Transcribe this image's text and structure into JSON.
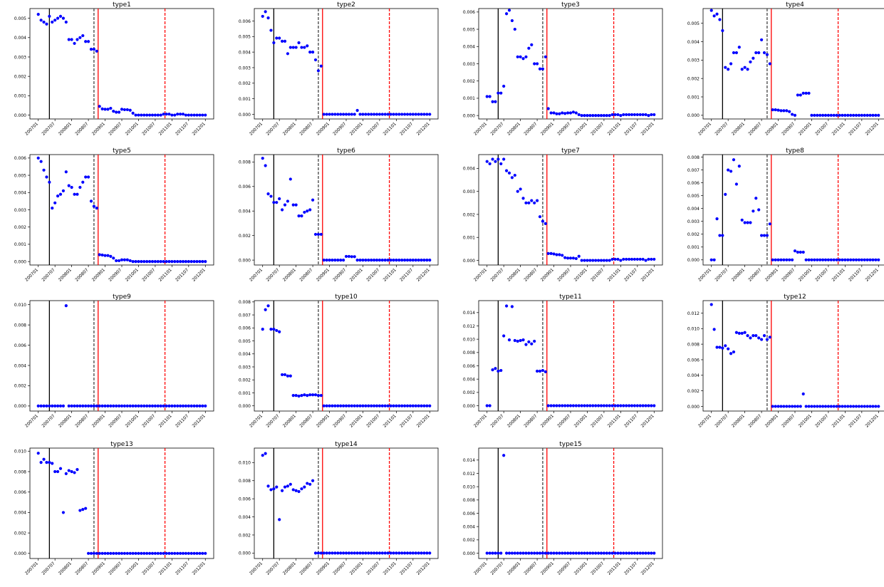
{
  "colors": {
    "points": "#0000ff",
    "black_line": "#000000",
    "dash_line": "#444444",
    "red_line": "#ff0000"
  },
  "x_tick_labels": [
    "200701",
    "200707",
    "200801",
    "200807",
    "200901",
    "200907",
    "201001",
    "201007",
    "201101",
    "201107",
    "201201"
  ],
  "chart_data": [
    {
      "type": "scatter",
      "title": "type1",
      "ylim": [
        -0.0002,
        0.0055
      ],
      "yticks": [
        "0.000",
        "0.001",
        "0.002",
        "0.003",
        "0.004",
        "0.005"
      ],
      "ytick_values": [
        0,
        0.001,
        0.002,
        0.003,
        0.004,
        0.005
      ],
      "y": [
        0.0052,
        0.0049,
        0.0048,
        0.0047,
        0.0051,
        0.0048,
        0.0049,
        0.005,
        0.0051,
        0.005,
        0.0048,
        0.0039,
        0.0039,
        0.0037,
        0.0039,
        0.004,
        0.0041,
        0.0038,
        0.0038,
        0.0034,
        0.0034,
        0.0033,
        0.00045,
        0.00032,
        0.0003,
        0.0003,
        0.00035,
        0.0002,
        0.00015,
        0.00015,
        0.0003,
        0.00028,
        0.00028,
        0.00025,
        0.0001,
        0.0,
        0.0,
        0.0,
        0.0,
        0.0,
        0.0,
        0.0,
        0.0,
        0.0,
        0.0,
        5e-05,
        5e-05,
        5e-05,
        0.0,
        0.0,
        5e-05,
        5e-05,
        5e-05,
        0.0,
        0.0,
        0.0,
        0.0,
        0.0,
        0.0,
        0.0,
        0.0
      ]
    },
    {
      "type": "scatter",
      "title": "type2",
      "ylim": [
        -0.0003,
        0.0068
      ],
      "yticks": [
        "0.000",
        "0.001",
        "0.002",
        "0.003",
        "0.004",
        "0.005",
        "0.006"
      ],
      "ytick_values": [
        0,
        0.001,
        0.002,
        0.003,
        0.004,
        0.005,
        0.006
      ],
      "y": [
        0.0063,
        0.0066,
        0.0062,
        0.0054,
        0.0046,
        0.0049,
        0.0049,
        0.0047,
        0.0047,
        0.0039,
        0.0043,
        0.0043,
        0.0043,
        0.0046,
        0.0043,
        0.0043,
        0.0044,
        0.004,
        0.004,
        0.0035,
        0.0028,
        0.0031,
        0,
        0,
        0,
        0,
        0,
        0,
        0,
        0,
        0,
        0,
        0,
        0,
        0.00025,
        0,
        0,
        0,
        0,
        0,
        0,
        0,
        0,
        0,
        0,
        0,
        0,
        0,
        0,
        0,
        0,
        0,
        0,
        0,
        0,
        0,
        0,
        0,
        0,
        0,
        0
      ]
    },
    {
      "type": "scatter",
      "title": "type3",
      "ylim": [
        -0.0002,
        0.0062
      ],
      "yticks": [
        "0.000",
        "0.001",
        "0.002",
        "0.003",
        "0.004",
        "0.005",
        "0.006"
      ],
      "ytick_values": [
        0,
        0.001,
        0.002,
        0.003,
        0.004,
        0.005,
        0.006
      ],
      "y": [
        0.0011,
        0.0011,
        0.0008,
        0.0008,
        0.0013,
        0.0013,
        0.0017,
        0.0059,
        0.0061,
        0.0055,
        0.005,
        0.0034,
        0.0034,
        0.0033,
        0.0034,
        0.0039,
        0.0041,
        0.003,
        0.003,
        0.0027,
        0.0027,
        0.0034,
        0.0004,
        0.00015,
        0.00015,
        0.0001,
        0.0001,
        0.00015,
        0.00012,
        0.00015,
        0.00015,
        0.0002,
        0.00015,
        5e-05,
        0.0,
        0.0,
        0.0,
        0.0,
        0.0,
        0.0,
        0.0,
        0.0,
        0.0,
        0.0,
        0.0,
        5e-05,
        5e-05,
        5e-05,
        0.0,
        5e-05,
        5e-05,
        5e-05,
        5e-05,
        5e-05,
        5e-05,
        5e-05,
        5e-05,
        5e-05,
        0.0,
        5e-05,
        5e-05
      ]
    },
    {
      "type": "scatter",
      "title": "type4",
      "ylim": [
        -0.0002,
        0.0058
      ],
      "yticks": [
        "0.000",
        "0.001",
        "0.002",
        "0.003",
        "0.004",
        "0.005"
      ],
      "ytick_values": [
        0,
        0.001,
        0.002,
        0.003,
        0.004,
        0.005
      ],
      "y": [
        0.0057,
        0.0054,
        0.0055,
        0.0052,
        0.0046,
        0.0026,
        0.0025,
        0.0028,
        0.0034,
        0.0034,
        0.0037,
        0.0025,
        0.0026,
        0.0025,
        0.0029,
        0.0031,
        0.0034,
        0.0034,
        0.0041,
        0.0034,
        0.0033,
        0.0028,
        0.0003,
        0.0003,
        0.00028,
        0.00025,
        0.00025,
        0.00025,
        0.0002,
        5e-05,
        0.0,
        0.0011,
        0.0011,
        0.0012,
        0.0012,
        0.0012,
        0.0,
        0.0,
        0.0,
        0.0,
        0.0,
        0.0,
        0.0,
        0.0,
        0.0,
        0.0,
        0.0,
        0.0,
        0.0,
        0.0,
        0.0,
        0.0,
        0.0,
        0.0,
        0.0,
        0.0,
        0.0,
        0.0,
        0.0,
        0.0,
        0.0
      ]
    },
    {
      "type": "scatter",
      "title": "type5",
      "ylim": [
        -0.0002,
        0.0062
      ],
      "yticks": [
        "0.000",
        "0.001",
        "0.002",
        "0.003",
        "0.004",
        "0.005",
        "0.006"
      ],
      "ytick_values": [
        0,
        0.001,
        0.002,
        0.003,
        0.004,
        0.005,
        0.006
      ],
      "y": [
        0.006,
        0.0058,
        0.0053,
        0.0049,
        0.0046,
        0.0031,
        0.0034,
        0.0038,
        0.0039,
        0.0041,
        0.0052,
        0.0044,
        0.0043,
        0.0039,
        0.0039,
        0.0043,
        0.0046,
        0.0049,
        0.0049,
        0.0035,
        0.0032,
        0.0031,
        0.0004,
        0.00038,
        0.00035,
        0.00035,
        0.0003,
        0.0002,
        5e-05,
        5e-05,
        0.0001,
        0.0001,
        0.0001,
        5e-05,
        0.0,
        0.0,
        0.0,
        0.0,
        0.0,
        0.0,
        0.0,
        0.0,
        0.0,
        0.0,
        0.0,
        0.0,
        0.0,
        0.0,
        0.0,
        0.0,
        0.0,
        0.0,
        0.0,
        0.0,
        0.0,
        0.0,
        0.0,
        0.0,
        0.0,
        0.0,
        0.0
      ]
    },
    {
      "type": "scatter",
      "title": "type6",
      "ylim": [
        -0.0004,
        0.0086
      ],
      "yticks": [
        "0.000",
        "0.002",
        "0.004",
        "0.006",
        "0.008"
      ],
      "ytick_values": [
        0,
        0.002,
        0.004,
        0.006,
        0.008
      ],
      "y": [
        0.0083,
        0.0077,
        0.0054,
        0.0052,
        0.0047,
        0.0047,
        0.005,
        0.0041,
        0.0045,
        0.0048,
        0.0066,
        0.0045,
        0.0045,
        0.0036,
        0.0036,
        0.0039,
        0.004,
        0.0041,
        0.0049,
        0.0021,
        0.0021,
        0.0021,
        0,
        0,
        0,
        0,
        0,
        0,
        0,
        0,
        0.0003,
        0.0003,
        0.00028,
        0.00028,
        0,
        0,
        0,
        0,
        0,
        0,
        0,
        0,
        0,
        0,
        0,
        0,
        0,
        0,
        0,
        0,
        0,
        0,
        0,
        0,
        0,
        0,
        0,
        0,
        0,
        0,
        0
      ]
    },
    {
      "type": "scatter",
      "title": "type7",
      "ylim": [
        -0.0002,
        0.0046
      ],
      "yticks": [
        "0.000",
        "0.001",
        "0.002",
        "0.003",
        "0.004"
      ],
      "ytick_values": [
        0,
        0.001,
        0.002,
        0.003,
        0.004
      ],
      "y": [
        0.0043,
        0.0042,
        0.0044,
        0.0043,
        0.0044,
        0.0042,
        0.0044,
        0.0039,
        0.0038,
        0.0036,
        0.0037,
        0.003,
        0.0031,
        0.0027,
        0.0025,
        0.0025,
        0.0026,
        0.0025,
        0.0026,
        0.0019,
        0.0017,
        0.0016,
        0.0003,
        0.0003,
        0.00028,
        0.00025,
        0.00025,
        0.00022,
        0.00012,
        0.0001,
        0.0001,
        0.0001,
        8e-05,
        0.00018,
        0.0,
        0.0,
        0.0,
        0.0,
        0.0,
        0.0,
        0.0,
        0.0,
        0.0,
        0.0,
        0.0,
        5e-05,
        5e-05,
        5e-05,
        0.0,
        5e-05,
        5e-05,
        5e-05,
        5e-05,
        5e-05,
        5e-05,
        5e-05,
        5e-05,
        0.0,
        5e-05,
        5e-05,
        5e-05
      ]
    },
    {
      "type": "scatter",
      "title": "type8",
      "ylim": [
        -0.0004,
        0.0082
      ],
      "yticks": [
        "0.000",
        "0.001",
        "0.002",
        "0.003",
        "0.004",
        "0.005",
        "0.006",
        "0.007",
        "0.008"
      ],
      "ytick_values": [
        0,
        0.001,
        0.002,
        0.003,
        0.004,
        0.005,
        0.006,
        0.007,
        0.008
      ],
      "y": [
        0,
        0,
        0.0032,
        0.0019,
        0.0019,
        0.0051,
        0.007,
        0.0069,
        0.0078,
        0.0059,
        0.0073,
        0.0031,
        0.0029,
        0.0029,
        0.0029,
        0.0038,
        0.0048,
        0.0039,
        0.0019,
        0.0019,
        0.0019,
        0.0028,
        0,
        0,
        0,
        0,
        0,
        0,
        0,
        0,
        0.0007,
        0.0006,
        0.0006,
        0.0006,
        0,
        0,
        0,
        0,
        0,
        0,
        0,
        0,
        0,
        0,
        0,
        0,
        0,
        0,
        0,
        0,
        0,
        0,
        0,
        0,
        0,
        0,
        0,
        0,
        0,
        0,
        0
      ]
    },
    {
      "type": "scatter",
      "title": "type9",
      "ylim": [
        -0.0005,
        0.0104
      ],
      "yticks": [
        "0.000",
        "0.002",
        "0.004",
        "0.006",
        "0.008",
        "0.010"
      ],
      "ytick_values": [
        0,
        0.002,
        0.004,
        0.006,
        0.008,
        0.01
      ],
      "y": [
        0,
        0,
        0,
        0,
        0,
        0,
        0,
        0,
        0,
        0,
        0.0099,
        0,
        0,
        0,
        0,
        0,
        0,
        0,
        0,
        0,
        0,
        0,
        0,
        0,
        0,
        0,
        0,
        0,
        0,
        0,
        0,
        0,
        0,
        0,
        0,
        0,
        0,
        0,
        0,
        0,
        0,
        0,
        0,
        0,
        0,
        0,
        0,
        0,
        0,
        0,
        0,
        0,
        0,
        0,
        0,
        0,
        0,
        0,
        0,
        0,
        0
      ]
    },
    {
      "type": "scatter",
      "title": "type10",
      "ylim": [
        -0.0004,
        0.0081
      ],
      "yticks": [
        "0.000",
        "0.001",
        "0.002",
        "0.003",
        "0.004",
        "0.005",
        "0.006",
        "0.007",
        "0.008"
      ],
      "ytick_values": [
        0,
        0.001,
        0.002,
        0.003,
        0.004,
        0.005,
        0.006,
        0.007,
        0.008
      ],
      "y": [
        0.0059,
        0.0074,
        0.0077,
        0.0059,
        0.0059,
        0.0058,
        0.0057,
        0.0024,
        0.0024,
        0.0023,
        0.0023,
        0.0008,
        0.0008,
        0.00075,
        0.0008,
        0.00085,
        0.0008,
        0.00085,
        0.00085,
        0.00085,
        0.0008,
        0.0008,
        0,
        0,
        0,
        0,
        0,
        0,
        0,
        0,
        0,
        0,
        0,
        0,
        0,
        0,
        0,
        0,
        0,
        0,
        0,
        0,
        0,
        0,
        0,
        0,
        0,
        0,
        0,
        0,
        0,
        0,
        0,
        0,
        0,
        0,
        0,
        0,
        0,
        0,
        0
      ]
    },
    {
      "type": "scatter",
      "title": "type11",
      "ylim": [
        -0.0008,
        0.0158
      ],
      "yticks": [
        "0.000",
        "0.002",
        "0.004",
        "0.006",
        "0.008",
        "0.010",
        "0.012",
        "0.014"
      ],
      "ytick_values": [
        0,
        0.002,
        0.004,
        0.006,
        0.008,
        0.01,
        0.012,
        0.014
      ],
      "y": [
        0,
        0,
        0.0054,
        0.0056,
        0.0052,
        0.0053,
        0.0105,
        0.015,
        0.0099,
        0.0149,
        0.0098,
        0.0097,
        0.0098,
        0.0099,
        0.0092,
        0.0096,
        0.0093,
        0.0097,
        0.0052,
        0.0052,
        0.0053,
        0.0051,
        0,
        0,
        0,
        0,
        0,
        0,
        0,
        0,
        0,
        0,
        0,
        0,
        0,
        0,
        0,
        0,
        0,
        0,
        0,
        0,
        0,
        0,
        0,
        0,
        0,
        0,
        0,
        0,
        0,
        0,
        0,
        0,
        0,
        0,
        0,
        0,
        0,
        0,
        0
      ]
    },
    {
      "type": "scatter",
      "title": "type12",
      "ylim": [
        -0.0006,
        0.0136
      ],
      "yticks": [
        "0.000",
        "0.002",
        "0.004",
        "0.006",
        "0.008",
        "0.010",
        "0.012"
      ],
      "ytick_values": [
        0,
        0.002,
        0.004,
        0.006,
        0.008,
        0.01,
        0.012
      ],
      "y": [
        0.0131,
        0.0099,
        0.0076,
        0.0076,
        0.0075,
        0.0078,
        0.0074,
        0.0068,
        0.007,
        0.0095,
        0.0094,
        0.0094,
        0.0095,
        0.0091,
        0.0088,
        0.0091,
        0.0091,
        0.0088,
        0.0086,
        0.0091,
        0.0086,
        0.0089,
        0,
        0,
        0,
        0,
        0,
        0,
        0,
        0,
        0,
        0,
        0,
        0.0016,
        0,
        0,
        0,
        0,
        0,
        0,
        0,
        0,
        0,
        0,
        0,
        0,
        0,
        0,
        0,
        0,
        0,
        0,
        0,
        0,
        0,
        0,
        0,
        0,
        0,
        0,
        0
      ]
    },
    {
      "type": "scatter",
      "title": "type13",
      "ylim": [
        -0.0005,
        0.0103
      ],
      "yticks": [
        "0.000",
        "0.002",
        "0.004",
        "0.006",
        "0.008",
        "0.010"
      ],
      "ytick_values": [
        0,
        0.002,
        0.004,
        0.006,
        0.008,
        0.01
      ],
      "y": [
        0.0098,
        0.0089,
        0.0092,
        0.0089,
        0.0089,
        0.0088,
        0.008,
        0.008,
        0.0083,
        0.004,
        0.0078,
        0.0081,
        0.008,
        0.0079,
        0.0082,
        0.0042,
        0.0043,
        0.0044,
        0.0,
        0.0,
        0.0,
        0.0,
        0,
        0,
        0,
        0,
        0,
        0,
        0,
        0,
        0,
        0,
        0,
        0,
        0,
        0,
        0,
        0,
        0,
        0,
        0,
        0,
        0,
        0,
        0,
        0,
        0,
        0,
        0,
        0,
        0,
        0,
        0,
        0,
        0,
        0,
        0,
        0,
        0,
        0,
        0
      ]
    },
    {
      "type": "scatter",
      "title": "type14",
      "ylim": [
        -0.0006,
        0.0116
      ],
      "yticks": [
        "0.000",
        "0.002",
        "0.004",
        "0.006",
        "0.008",
        "0.010"
      ],
      "ytick_values": [
        0,
        0.002,
        0.004,
        0.006,
        0.008,
        0.01
      ],
      "y": [
        0.0108,
        0.011,
        0.0074,
        0.007,
        0.0071,
        0.0073,
        0.0037,
        0.0069,
        0.0073,
        0.0074,
        0.0076,
        0.007,
        0.0069,
        0.0068,
        0.0071,
        0.0073,
        0.0077,
        0.0076,
        0.008,
        0.0,
        0.0,
        0.0,
        0,
        0,
        0,
        0,
        0,
        0,
        0,
        0,
        0,
        0,
        0,
        0,
        0,
        0,
        0,
        0,
        0,
        0,
        0,
        0,
        0,
        0,
        0,
        0,
        0,
        0,
        0,
        0,
        0,
        0,
        0,
        0,
        0,
        0,
        0,
        0,
        0,
        0,
        0
      ]
    },
    {
      "type": "scatter",
      "title": "type15",
      "ylim": [
        -0.0008,
        0.0158
      ],
      "yticks": [
        "0.000",
        "0.002",
        "0.004",
        "0.006",
        "0.008",
        "0.010",
        "0.012",
        "0.014"
      ],
      "ytick_values": [
        0,
        0.002,
        0.004,
        0.006,
        0.008,
        0.01,
        0.012,
        0.014
      ],
      "y": [
        0,
        0,
        0,
        0,
        0,
        0,
        0.0147,
        0,
        0,
        0,
        0,
        0,
        0,
        0,
        0,
        0,
        0,
        0,
        0,
        0,
        0,
        0,
        0,
        0,
        0,
        0,
        0,
        0,
        0,
        0,
        0,
        0,
        0,
        0,
        0,
        0,
        0,
        0,
        0,
        0,
        0,
        0,
        0,
        0,
        0,
        0,
        0,
        0,
        0,
        0,
        0,
        0,
        0,
        0,
        0,
        0,
        0,
        0,
        0,
        0,
        0
      ]
    }
  ]
}
